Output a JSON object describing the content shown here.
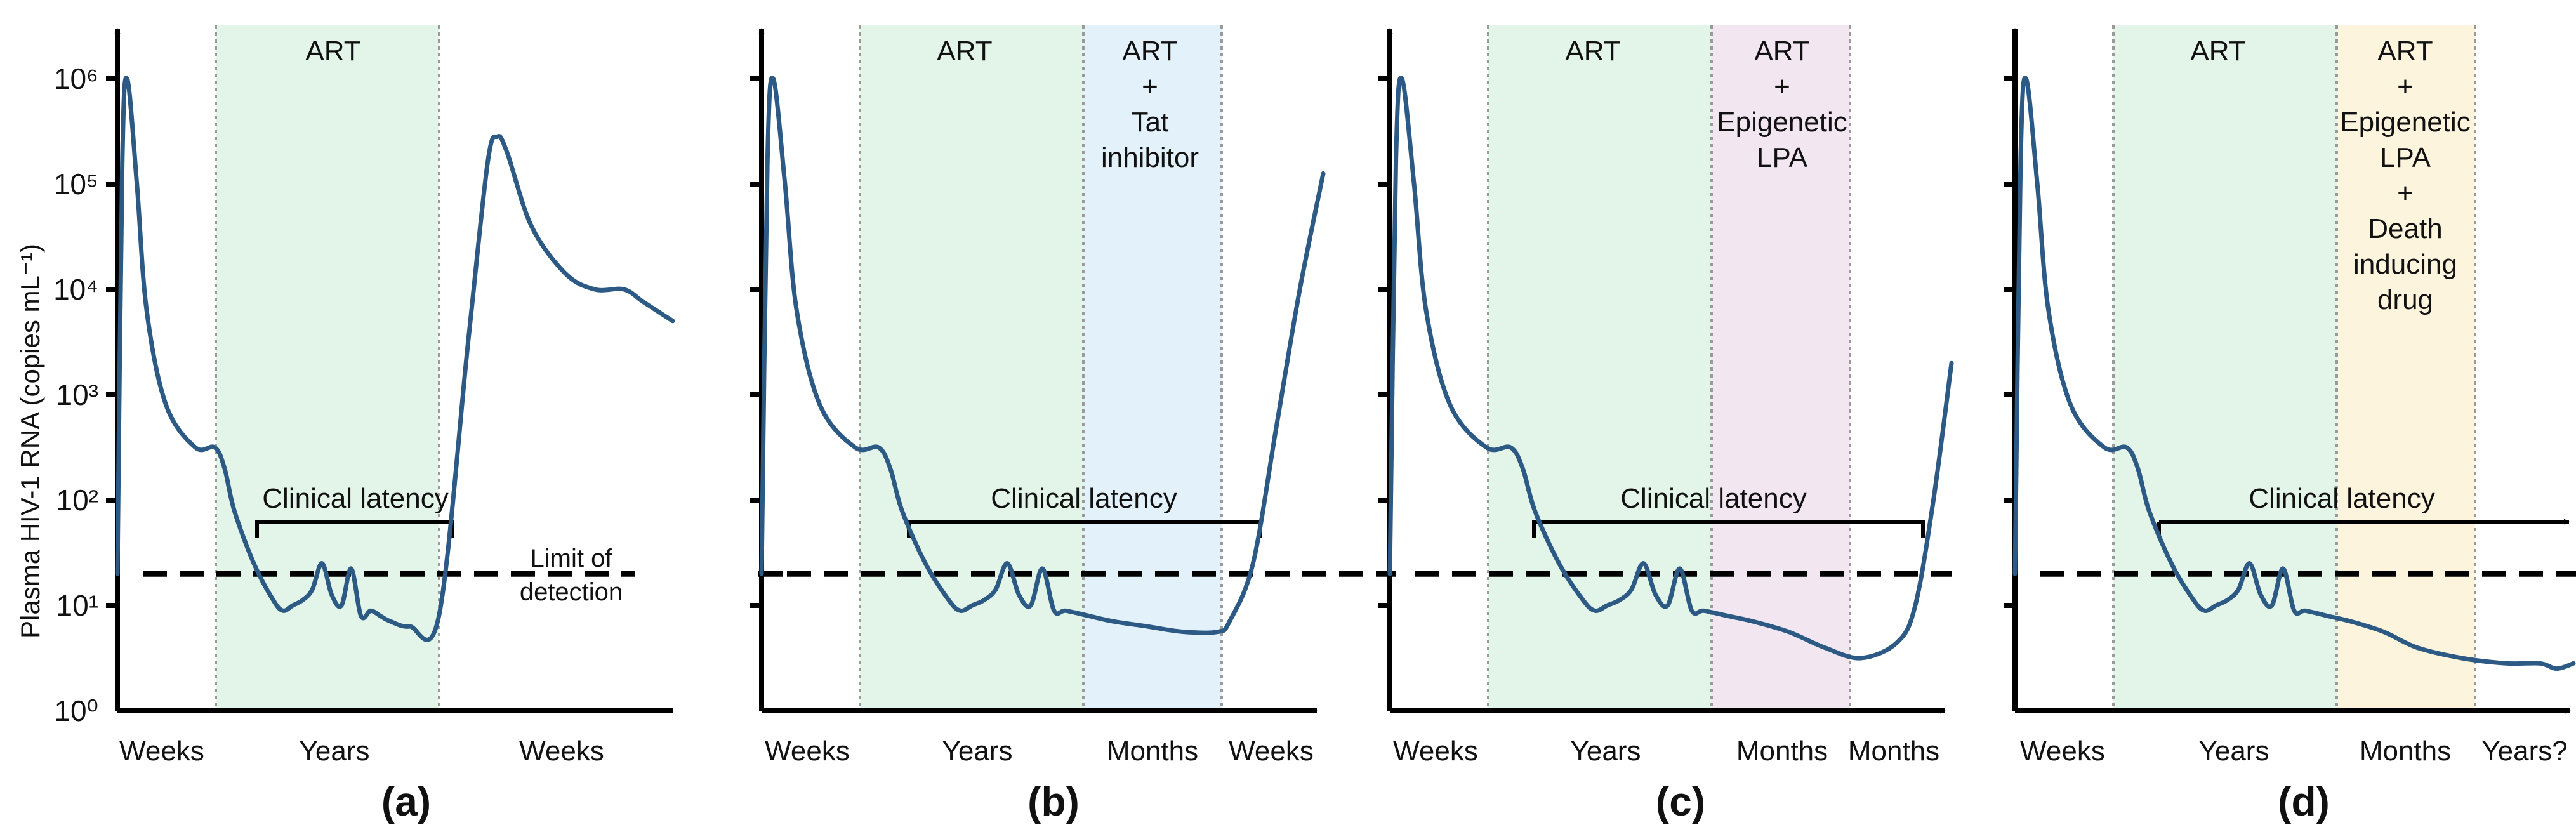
{
  "figure": {
    "y_axis_title": "Plasma HIV-1 RNA (copies mL⁻¹)",
    "y_tick_labels": [
      "10⁰",
      "10¹",
      "10²",
      "10³",
      "10⁴",
      "10⁵",
      "10⁶"
    ],
    "limit_of_detection_line1": "Limit of",
    "limit_of_detection_line2": "detection",
    "colors": {
      "curve": "#2c5a84",
      "art_band": "#e3f4e8",
      "tat_band": "#e2f1fa",
      "epigenetic_band": "#f2e6f1",
      "death_band": "#fdf4dd",
      "axis": "#000000"
    }
  },
  "chart_data": [
    {
      "type": "line",
      "panel": "(a)",
      "ylabel": "Plasma HIV-1 RNA (copies mL⁻¹)",
      "ylim": [
        0,
        6.6
      ],
      "y_scale": "log10 copies/mL",
      "limit_of_detection_log10": 1.3,
      "bands": [
        {
          "label": "ART"
        }
      ],
      "x_labels": [
        "Weeks",
        "Years",
        "Weeks"
      ],
      "latency_label": "Clinical latency",
      "series": [
        {
          "name": "Plasma HIV-1 RNA",
          "x": [
            0,
            0.05,
            0.1,
            0.2,
            0.3,
            0.5,
            0.8,
            1.0,
            1.1,
            1.2,
            1.4,
            1.6,
            1.7,
            1.8,
            1.9,
            2.0,
            2.1,
            2.2,
            2.3,
            2.4,
            2.5,
            2.6,
            2.7,
            2.8,
            3.0,
            3.3,
            3.6,
            3.8,
            3.9,
            4.0,
            4.25,
            4.6,
            4.9,
            5.2,
            5.4,
            5.7
          ],
          "y": [
            1.3,
            5.2,
            6.0,
            5.0,
            3.8,
            2.9,
            2.5,
            2.5,
            2.3,
            1.9,
            1.4,
            1.05,
            0.95,
            1.0,
            1.05,
            1.15,
            1.4,
            1.1,
            1.0,
            1.35,
            0.9,
            0.95,
            0.9,
            0.85,
            0.8,
            0.9,
            3.5,
            5.2,
            5.45,
            5.3,
            4.6,
            4.15,
            4.0,
            4.0,
            3.88,
            3.7
          ]
        }
      ]
    },
    {
      "type": "line",
      "panel": "(b)",
      "ylim": [
        0,
        6.6
      ],
      "limit_of_detection_log10": 1.3,
      "bands": [
        {
          "label": "ART"
        },
        {
          "label": "ART\n+\nTat\ninhibitor"
        }
      ],
      "x_labels": [
        "Weeks",
        "Years",
        "Months",
        "Weeks"
      ],
      "latency_label": "Clinical latency",
      "series": [
        {
          "name": "Plasma HIV-1 RNA",
          "x": [
            0,
            0.05,
            0.1,
            0.2,
            0.3,
            0.5,
            0.8,
            1.0,
            1.1,
            1.2,
            1.4,
            1.6,
            1.7,
            1.8,
            1.9,
            2.0,
            2.1,
            2.2,
            2.3,
            2.4,
            2.5,
            2.6,
            2.8,
            3.0,
            3.3,
            3.6,
            3.9,
            4.0,
            4.2,
            4.4,
            4.6,
            4.8
          ],
          "y": [
            1.3,
            5.2,
            6.0,
            5.0,
            3.8,
            2.9,
            2.5,
            2.5,
            2.3,
            1.9,
            1.4,
            1.05,
            0.95,
            1.0,
            1.05,
            1.15,
            1.4,
            1.1,
            1.0,
            1.35,
            0.95,
            0.95,
            0.9,
            0.85,
            0.8,
            0.75,
            0.75,
            0.85,
            1.4,
            2.7,
            4.0,
            5.1
          ]
        }
      ]
    },
    {
      "type": "line",
      "panel": "(c)",
      "ylim": [
        0,
        6.6
      ],
      "limit_of_detection_log10": 1.3,
      "bands": [
        {
          "label": "ART"
        },
        {
          "label": "ART\n+\nEpigenetic\nLPA"
        }
      ],
      "x_labels": [
        "Weeks",
        "Years",
        "Months",
        "Months"
      ],
      "latency_label": "Clinical latency",
      "series": [
        {
          "name": "Plasma HIV-1 RNA",
          "x": [
            0,
            0.05,
            0.1,
            0.2,
            0.3,
            0.5,
            0.8,
            1.0,
            1.1,
            1.2,
            1.4,
            1.6,
            1.7,
            1.8,
            1.9,
            2.0,
            2.1,
            2.2,
            2.3,
            2.4,
            2.5,
            2.6,
            2.8,
            3.0,
            3.3,
            3.6,
            3.9,
            4.2,
            4.35,
            4.5,
            4.65
          ],
          "y": [
            1.3,
            5.2,
            6.0,
            5.0,
            3.8,
            2.9,
            2.5,
            2.5,
            2.3,
            1.9,
            1.4,
            1.05,
            0.95,
            1.0,
            1.05,
            1.15,
            1.4,
            1.1,
            1.0,
            1.35,
            0.95,
            0.95,
            0.9,
            0.85,
            0.75,
            0.6,
            0.5,
            0.65,
            1.0,
            2.0,
            3.3
          ]
        }
      ]
    },
    {
      "type": "line",
      "panel": "(d)",
      "ylim": [
        0,
        6.6
      ],
      "limit_of_detection_log10": 1.3,
      "bands": [
        {
          "label": "ART"
        },
        {
          "label": "ART\n+\nEpigenetic\nLPA\n+\nDeath\ninducing\ndrug"
        }
      ],
      "x_labels": [
        "Weeks",
        "Years",
        "Months",
        "Years?"
      ],
      "latency_label": "Clinical latency",
      "series": [
        {
          "name": "Plasma HIV-1 RNA",
          "x": [
            0,
            0.05,
            0.1,
            0.2,
            0.3,
            0.5,
            0.8,
            1.0,
            1.1,
            1.2,
            1.4,
            1.6,
            1.7,
            1.8,
            1.9,
            2.0,
            2.1,
            2.2,
            2.3,
            2.4,
            2.5,
            2.6,
            2.8,
            3.0,
            3.3,
            3.6,
            4.0,
            4.4,
            4.7,
            4.85,
            5.0
          ],
          "y": [
            1.3,
            5.2,
            6.0,
            5.0,
            3.8,
            2.9,
            2.5,
            2.5,
            2.3,
            1.9,
            1.4,
            1.05,
            0.95,
            1.0,
            1.05,
            1.15,
            1.4,
            1.1,
            1.0,
            1.35,
            0.95,
            0.95,
            0.9,
            0.85,
            0.75,
            0.6,
            0.5,
            0.45,
            0.45,
            0.4,
            0.45
          ]
        }
      ]
    }
  ]
}
